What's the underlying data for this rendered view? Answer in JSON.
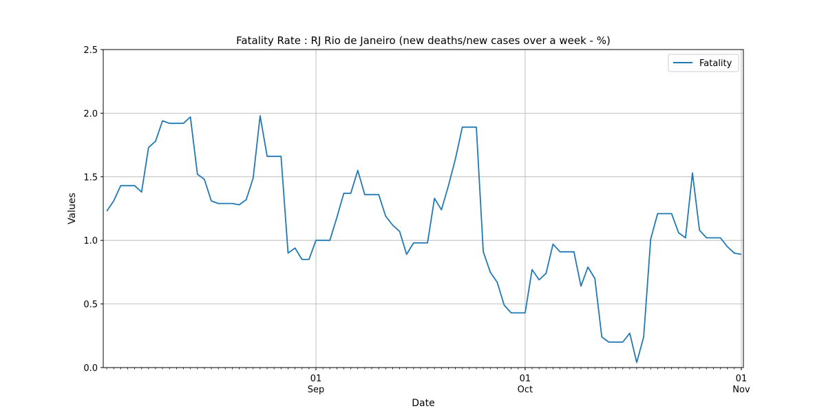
{
  "chart_data": {
    "type": "line",
    "title": "Fatality Rate : RJ Rio de Janeiro (new deaths/new cases over a week - %)",
    "xlabel": "Date",
    "ylabel": "Values",
    "ylim": [
      0,
      2.5
    ],
    "xlim": [
      "2020-08-01",
      "2020-11-01"
    ],
    "yticks": [
      0.0,
      0.5,
      1.0,
      1.5,
      2.0,
      2.5
    ],
    "ytick_labels": [
      "0.0",
      "0.5",
      "1.0",
      "1.5",
      "2.0",
      "2.5"
    ],
    "xticks_major": [
      {
        "date": "2020-09-01",
        "day": "01",
        "month": "Sep"
      },
      {
        "date": "2020-10-01",
        "day": "01",
        "month": "Oct"
      },
      {
        "date": "2020-11-01",
        "day": "01",
        "month": "Nov"
      }
    ],
    "grid": true,
    "legend_position": "top-right",
    "series": [
      {
        "name": "Fatality",
        "color": "#1f77b4",
        "x": [
          "2020-08-02",
          "2020-08-03",
          "2020-08-04",
          "2020-08-05",
          "2020-08-06",
          "2020-08-07",
          "2020-08-08",
          "2020-08-09",
          "2020-08-10",
          "2020-08-11",
          "2020-08-12",
          "2020-08-13",
          "2020-08-14",
          "2020-08-15",
          "2020-08-16",
          "2020-08-17",
          "2020-08-18",
          "2020-08-19",
          "2020-08-20",
          "2020-08-21",
          "2020-08-22",
          "2020-08-23",
          "2020-08-24",
          "2020-08-25",
          "2020-08-26",
          "2020-08-27",
          "2020-08-28",
          "2020-08-29",
          "2020-08-30",
          "2020-08-31",
          "2020-09-01",
          "2020-09-02",
          "2020-09-03",
          "2020-09-04",
          "2020-09-05",
          "2020-09-06",
          "2020-09-07",
          "2020-09-08",
          "2020-09-09",
          "2020-09-10",
          "2020-09-11",
          "2020-09-12",
          "2020-09-13",
          "2020-09-14",
          "2020-09-15",
          "2020-09-16",
          "2020-09-17",
          "2020-09-18",
          "2020-09-19",
          "2020-09-20",
          "2020-09-21",
          "2020-09-22",
          "2020-09-23",
          "2020-09-24",
          "2020-09-25",
          "2020-09-26",
          "2020-09-27",
          "2020-09-28",
          "2020-09-29",
          "2020-09-30",
          "2020-10-01",
          "2020-10-02",
          "2020-10-03",
          "2020-10-04",
          "2020-10-05",
          "2020-10-06",
          "2020-10-07",
          "2020-10-08",
          "2020-10-09",
          "2020-10-10",
          "2020-10-11",
          "2020-10-12",
          "2020-10-13",
          "2020-10-14",
          "2020-10-15",
          "2020-10-16",
          "2020-10-17",
          "2020-10-18",
          "2020-10-19",
          "2020-10-20",
          "2020-10-21",
          "2020-10-22",
          "2020-10-23",
          "2020-10-24",
          "2020-10-25",
          "2020-10-26",
          "2020-10-27",
          "2020-10-28",
          "2020-10-29",
          "2020-10-30",
          "2020-10-31",
          "2020-11-01"
        ],
        "values": [
          1.23,
          1.31,
          1.43,
          1.43,
          1.43,
          1.38,
          1.73,
          1.78,
          1.94,
          1.92,
          1.92,
          1.92,
          1.97,
          1.52,
          1.48,
          1.31,
          1.29,
          1.29,
          1.29,
          1.28,
          1.32,
          1.49,
          1.98,
          1.66,
          1.66,
          1.66,
          0.9,
          0.94,
          0.85,
          0.85,
          1.0,
          1.0,
          1.0,
          1.18,
          1.37,
          1.37,
          1.55,
          1.36,
          1.36,
          1.36,
          1.19,
          1.12,
          1.07,
          0.89,
          0.98,
          0.98,
          0.98,
          1.33,
          1.24,
          1.43,
          1.64,
          1.89,
          1.89,
          1.89,
          0.91,
          0.75,
          0.67,
          0.49,
          0.43,
          0.43,
          0.43,
          0.77,
          0.69,
          0.74,
          0.97,
          0.91,
          0.91,
          0.91,
          0.64,
          0.79,
          0.7,
          0.24,
          0.2,
          0.2,
          0.2,
          0.27,
          0.04,
          0.24,
          1.01,
          1.21,
          1.21,
          1.21,
          1.06,
          1.02,
          1.53,
          1.08,
          1.02,
          1.02,
          1.02,
          0.95,
          0.9,
          0.89
        ]
      }
    ]
  }
}
